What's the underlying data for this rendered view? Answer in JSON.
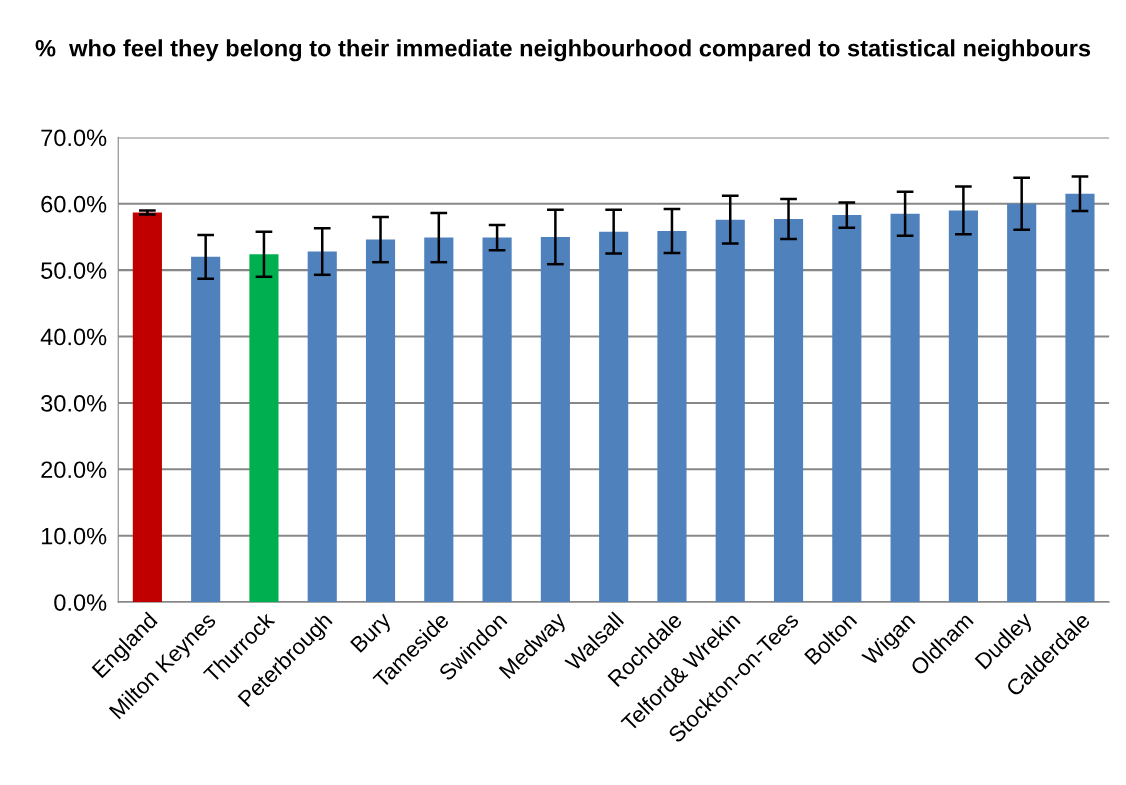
{
  "chart_data": {
    "type": "bar",
    "title": "%  who feel they belong to their immediate neighbourhood compared to statistical neighbours",
    "categories": [
      "England",
      "Milton Keynes",
      "Thurrock",
      "Peterbrough",
      "Bury",
      "Tameside",
      "Swindon",
      "Medway",
      "Walsall",
      "Rochdale",
      "Telford& Wrekin",
      "Stockton-on-Tees",
      "Bolton",
      "Wigan",
      "Oldham",
      "Dudley",
      "Calderdale"
    ],
    "values": [
      58.7,
      52.0,
      52.4,
      52.8,
      54.6,
      54.9,
      54.9,
      55.0,
      55.8,
      55.9,
      57.6,
      57.7,
      58.3,
      58.5,
      59.0,
      60.0,
      61.5
    ],
    "errors": [
      0.3,
      3.3,
      3.4,
      3.5,
      3.4,
      3.7,
      1.9,
      4.1,
      3.3,
      3.3,
      3.6,
      3.0,
      1.9,
      3.3,
      3.6,
      3.9,
      2.6
    ],
    "colors": [
      "#c00000",
      "#4f81bd",
      "#00b050",
      "#4f81bd",
      "#4f81bd",
      "#4f81bd",
      "#4f81bd",
      "#4f81bd",
      "#4f81bd",
      "#4f81bd",
      "#4f81bd",
      "#4f81bd",
      "#4f81bd",
      "#4f81bd",
      "#4f81bd",
      "#4f81bd",
      "#4f81bd"
    ],
    "ylim": [
      0,
      70
    ],
    "yticks": [
      {
        "value": 0,
        "label": "0.0%"
      },
      {
        "value": 10,
        "label": "10.0%"
      },
      {
        "value": 20,
        "label": "20.0%"
      },
      {
        "value": 30,
        "label": "30.0%"
      },
      {
        "value": 40,
        "label": "40.0%"
      },
      {
        "value": 50,
        "label": "50.0%"
      },
      {
        "value": 60,
        "label": "60.0%"
      },
      {
        "value": 70,
        "label": "70.0%"
      }
    ],
    "grid": "y"
  }
}
